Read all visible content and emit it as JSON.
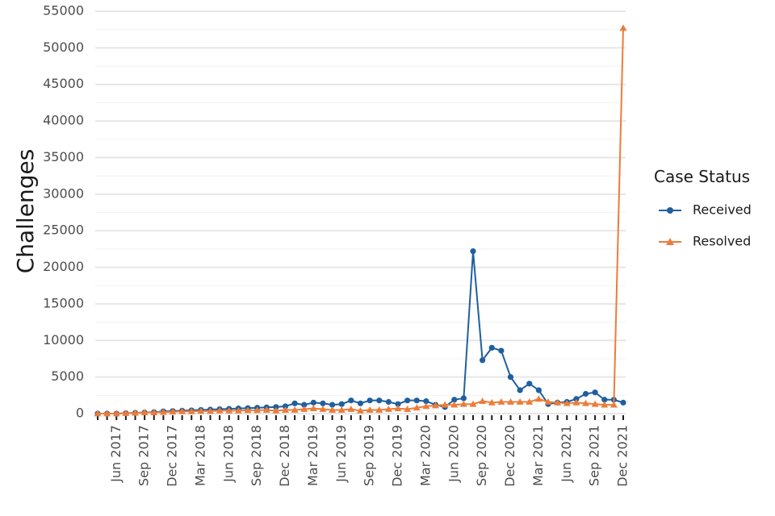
{
  "chart_data": {
    "type": "line",
    "title": "",
    "xlabel": "",
    "ylabel": "Challenges",
    "ylim": [
      0,
      55000
    ],
    "y_ticks": [
      "0",
      "5000",
      "10000",
      "15000",
      "20000",
      "25000",
      "30000",
      "35000",
      "40000",
      "45000",
      "50000",
      "55000"
    ],
    "grid": true,
    "legend_position": "right",
    "legend_title": "Case Status",
    "x_start": "Apr 2017",
    "x_end": "Dec 2021",
    "x_tick_labels": [
      {
        "label": "Jun 2017",
        "month_index": 2
      },
      {
        "label": "Sep 2017",
        "month_index": 5
      },
      {
        "label": "Dec 2017",
        "month_index": 8
      },
      {
        "label": "Mar 2018",
        "month_index": 11
      },
      {
        "label": "Jun 2018",
        "month_index": 14
      },
      {
        "label": "Sep 2018",
        "month_index": 17
      },
      {
        "label": "Dec 2018",
        "month_index": 20
      },
      {
        "label": "Mar 2019",
        "month_index": 23
      },
      {
        "label": "Jun 2019",
        "month_index": 26
      },
      {
        "label": "Sep 2019",
        "month_index": 29
      },
      {
        "label": "Dec 2019",
        "month_index": 32
      },
      {
        "label": "Mar 2020",
        "month_index": 35
      },
      {
        "label": "Jun 2020",
        "month_index": 38
      },
      {
        "label": "Sep 2020",
        "month_index": 41
      },
      {
        "label": "Dec 2020",
        "month_index": 44
      },
      {
        "label": "Mar 2021",
        "month_index": 47
      },
      {
        "label": "Jun 2021",
        "month_index": 50
      },
      {
        "label": "Sep 2021",
        "month_index": 53
      },
      {
        "label": "Dec 2021",
        "month_index": 56
      }
    ],
    "series": [
      {
        "name": "Received",
        "color": "#1f5fa0",
        "marker": "circle",
        "values": [
          0,
          0,
          0,
          50,
          100,
          150,
          200,
          300,
          350,
          400,
          450,
          500,
          550,
          600,
          650,
          700,
          750,
          800,
          850,
          900,
          1000,
          1400,
          1200,
          1500,
          1400,
          1200,
          1300,
          1800,
          1400,
          1800,
          1800,
          1600,
          1300,
          1800,
          1800,
          1700,
          1200,
          900,
          1900,
          2100,
          22200,
          7300,
          9000,
          8600,
          5000,
          3200,
          4100,
          3200,
          1300,
          1500,
          1600,
          2000,
          2700,
          2900,
          1900,
          1900,
          1500
        ]
      },
      {
        "name": "Resolved",
        "color": "#ec7c3a",
        "marker": "triangle",
        "values": [
          0,
          0,
          0,
          50,
          100,
          150,
          150,
          200,
          250,
          300,
          300,
          350,
          350,
          400,
          400,
          400,
          450,
          450,
          500,
          400,
          500,
          500,
          600,
          700,
          600,
          500,
          500,
          600,
          400,
          500,
          500,
          600,
          700,
          600,
          800,
          1000,
          1100,
          1200,
          1200,
          1300,
          1300,
          1700,
          1500,
          1600,
          1600,
          1600,
          1600,
          2000,
          1600,
          1500,
          1400,
          1500,
          1400,
          1300,
          1200,
          1200,
          52700
        ]
      }
    ]
  }
}
